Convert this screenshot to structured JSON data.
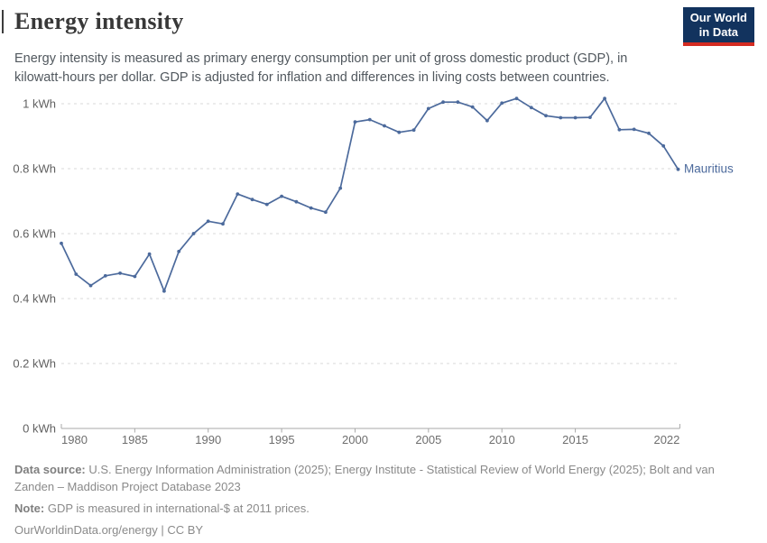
{
  "header": {
    "title": "Energy intensity",
    "subtitle": [
      "Energy intensity is measured as primary energy consumption per unit of gross domestic product (GDP), in",
      "kilowatt-hours per dollar. GDP is adjusted for inflation and differences in living costs between countries."
    ],
    "logo": {
      "line1": "Our World",
      "line2": "in Data"
    }
  },
  "colors": {
    "line": "#4c6a9c",
    "grid": "#d9d9d9",
    "axis": "#a8a8a8",
    "logo_bg": "#12335e",
    "logo_red": "#d42b21"
  },
  "chart_data": {
    "type": "line",
    "title": "Energy intensity",
    "entity_label": "Mauritius",
    "unit": "kWh",
    "x_range": [
      1980,
      2022
    ],
    "ylim": [
      0,
      1.0
    ],
    "grid": true,
    "x": [
      1980,
      1981,
      1982,
      1983,
      1984,
      1985,
      1986,
      1987,
      1988,
      1989,
      1990,
      1991,
      1992,
      1993,
      1994,
      1995,
      1996,
      1997,
      1998,
      1999,
      2000,
      2001,
      2002,
      2003,
      2004,
      2005,
      2006,
      2007,
      2008,
      2009,
      2010,
      2011,
      2012,
      2013,
      2014,
      2015,
      2016,
      2017,
      2018,
      2019,
      2020,
      2021,
      2022
    ],
    "values": [
      0.57,
      0.475,
      0.44,
      0.47,
      0.478,
      0.468,
      0.537,
      0.423,
      0.545,
      0.6,
      0.638,
      0.63,
      0.722,
      0.705,
      0.69,
      0.715,
      0.698,
      0.679,
      0.666,
      0.74,
      0.944,
      0.951,
      0.932,
      0.912,
      0.919,
      0.985,
      1.005,
      1.005,
      0.99,
      0.948,
      1.002,
      1.016,
      0.988,
      0.963,
      0.957,
      0.957,
      0.958,
      1.016,
      0.92,
      0.921,
      0.909,
      0.87,
      0.798
    ],
    "yticks": [
      {
        "v": 0,
        "label": "0 kWh"
      },
      {
        "v": 0.2,
        "label": "0.2 kWh"
      },
      {
        "v": 0.4,
        "label": "0.4 kWh"
      },
      {
        "v": 0.6,
        "label": "0.6 kWh"
      },
      {
        "v": 0.8,
        "label": "0.8 kWh"
      },
      {
        "v": 1,
        "label": "1 kWh"
      }
    ],
    "xticks": [
      1980,
      1985,
      1990,
      1995,
      2000,
      2005,
      2010,
      2015,
      2022
    ]
  },
  "footer": {
    "source_label": "Data source:",
    "source_rest": "U.S. Energy Information Administration (2025); Energy Institute - Statistical Review of World Energy (2025); Bolt and van",
    "source_line2": "Zanden – Maddison Project Database 2023",
    "note_label": "Note:",
    "note_rest": "GDP is measured in international-$ at 2011 prices.",
    "link_line": "OurWorldinData.org/energy | CC BY"
  }
}
